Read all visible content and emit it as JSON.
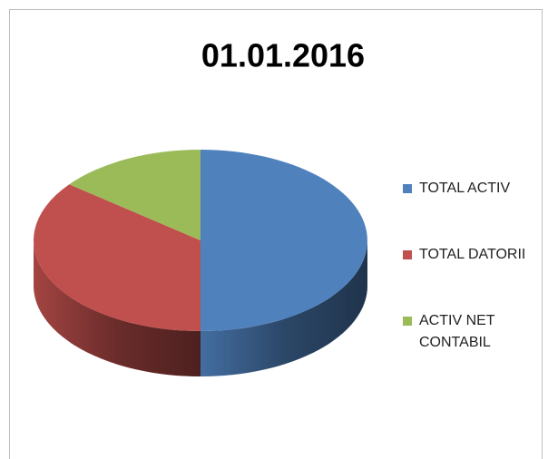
{
  "chart_data": {
    "type": "pie3d",
    "title": "01.01.2016",
    "categories": [
      "TOTAL ACTIV",
      "TOTAL DATORII",
      "ACTIV NET CONTABIL"
    ],
    "values": [
      50,
      35.6,
      14.4
    ],
    "colors": [
      "#4f81bd",
      "#c0504d",
      "#9bbb59"
    ],
    "legend": "right"
  }
}
